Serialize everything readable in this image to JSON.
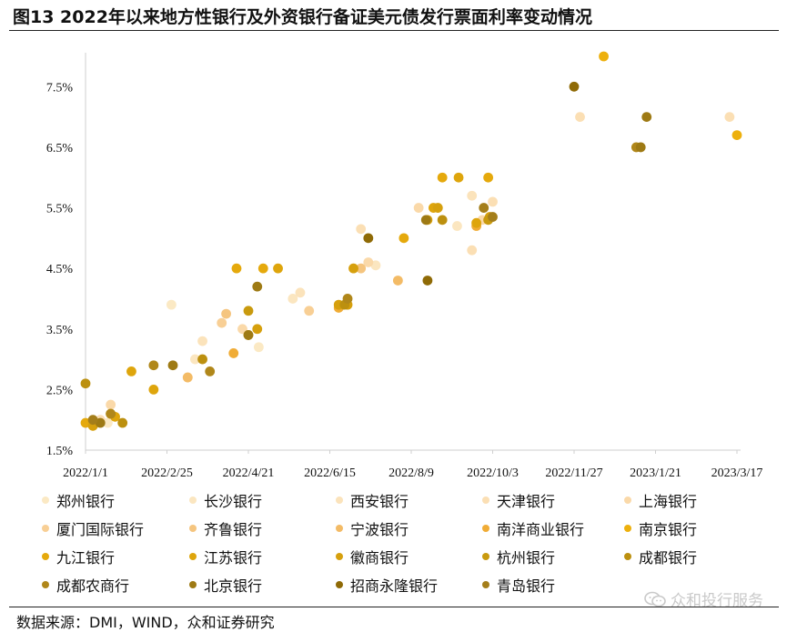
{
  "title": "图13 2022年以来地方性银行及外资银行备证美元债发行票面利率变动情况",
  "source": "数据来源：DMI，WIND，众和证券研究",
  "watermark": "众和投行服务",
  "chart_data": {
    "type": "scatter",
    "title": "",
    "xlabel": "",
    "ylabel": "",
    "x_tick_labels": [
      "2022/1/1",
      "2022/2/25",
      "2022/4/21",
      "2022/6/15",
      "2022/8/9",
      "2022/10/3",
      "2022/11/27",
      "2023/1/21",
      "2023/3/17"
    ],
    "x_range": [
      "2022/1/1",
      "2023/3/17"
    ],
    "y_tick_labels": [
      "1.5%",
      "2.5%",
      "3.5%",
      "4.5%",
      "5.5%",
      "6.5%",
      "7.5%"
    ],
    "y_ticks": [
      1.5,
      2.5,
      3.5,
      4.5,
      5.5,
      6.5,
      7.5
    ],
    "y_range": [
      1.5,
      8.0
    ],
    "grid": false,
    "legend_position": "bottom",
    "series": [
      {
        "name": "郑州银行",
        "color": "#fbe9c4",
        "points": [
          {
            "x": "2022/1/16",
            "y": 1.95
          },
          {
            "x": "2022/2/28",
            "y": 3.9
          },
          {
            "x": "2022/4/28",
            "y": 3.2
          }
        ]
      },
      {
        "name": "长沙银行",
        "color": "#fbe6c0",
        "points": [
          {
            "x": "2022/3/16",
            "y": 3.0
          },
          {
            "x": "2022/5/21",
            "y": 4.0
          },
          {
            "x": "2022/7/16",
            "y": 4.55
          },
          {
            "x": "2022/9/9",
            "y": 5.2
          }
        ]
      },
      {
        "name": "西安银行",
        "color": "#fbe3bb",
        "points": [
          {
            "x": "2022/3/21",
            "y": 3.3
          },
          {
            "x": "2022/5/26",
            "y": 4.1
          },
          {
            "x": "2022/9/19",
            "y": 5.7
          },
          {
            "x": "2022/10/2",
            "y": 5.35
          }
        ]
      },
      {
        "name": "天津银行",
        "color": "#fbdfb4",
        "points": [
          {
            "x": "2022/1/11",
            "y": 2.0
          },
          {
            "x": "2022/7/1",
            "y": 4.5
          },
          {
            "x": "2022/7/6",
            "y": 5.15
          },
          {
            "x": "2022/9/19",
            "y": 4.8
          },
          {
            "x": "2022/10/3",
            "y": 5.6
          },
          {
            "x": "2022/12/1",
            "y": 7.0
          },
          {
            "x": "2023/3/12",
            "y": 7.0
          }
        ]
      },
      {
        "name": "上海银行",
        "color": "#fad9a9",
        "points": [
          {
            "x": "2022/1/18",
            "y": 2.25
          },
          {
            "x": "2022/4/17",
            "y": 3.5
          },
          {
            "x": "2022/7/11",
            "y": 4.6
          },
          {
            "x": "2022/8/14",
            "y": 5.5
          },
          {
            "x": "2022/9/26",
            "y": 5.3
          }
        ]
      },
      {
        "name": "厦门国际银行",
        "color": "#f8cf95",
        "points": [
          {
            "x": "2022/3/11",
            "y": 2.7
          },
          {
            "x": "2022/4/3",
            "y": 3.6
          },
          {
            "x": "2022/6/1",
            "y": 3.8
          }
        ]
      },
      {
        "name": "齐鲁银行",
        "color": "#f5c57f",
        "points": [
          {
            "x": "2022/4/6",
            "y": 3.75
          },
          {
            "x": "2022/7/6",
            "y": 4.5
          }
        ]
      },
      {
        "name": "宁波银行",
        "color": "#f3bb66",
        "points": [
          {
            "x": "2022/3/11",
            "y": 2.7
          },
          {
            "x": "2022/7/31",
            "y": 4.3
          }
        ]
      },
      {
        "name": "南洋商业银行",
        "color": "#f0ac36",
        "points": [
          {
            "x": "2022/4/11",
            "y": 3.1
          },
          {
            "x": "2022/6/21",
            "y": 3.85
          },
          {
            "x": "2022/9/22",
            "y": 5.2
          }
        ]
      },
      {
        "name": "南京银行",
        "color": "#edb00d",
        "points": [
          {
            "x": "2022/12/17",
            "y": 8.0
          },
          {
            "x": "2023/3/17",
            "y": 6.7
          }
        ]
      },
      {
        "name": "九江银行",
        "color": "#e5a90c",
        "points": [
          {
            "x": "2022/1/1",
            "y": 1.95
          },
          {
            "x": "2022/4/13",
            "y": 4.5
          },
          {
            "x": "2022/5/1",
            "y": 4.5
          },
          {
            "x": "2022/8/4",
            "y": 5.0
          },
          {
            "x": "2022/8/30",
            "y": 6.0
          },
          {
            "x": "2022/9/30",
            "y": 6.0
          }
        ]
      },
      {
        "name": "江苏银行",
        "color": "#dea50c",
        "points": [
          {
            "x": "2022/1/21",
            "y": 2.05
          },
          {
            "x": "2022/2/1",
            "y": 2.8
          },
          {
            "x": "2022/2/16",
            "y": 2.5
          },
          {
            "x": "2022/4/21",
            "y": 3.4
          },
          {
            "x": "2022/5/11",
            "y": 4.5
          },
          {
            "x": "2022/8/24",
            "y": 5.5
          },
          {
            "x": "2022/9/10",
            "y": 6.0
          },
          {
            "x": "2022/9/22",
            "y": 5.25
          }
        ]
      },
      {
        "name": "徽商银行",
        "color": "#d6a00d",
        "points": [
          {
            "x": "2022/1/6",
            "y": 1.9
          },
          {
            "x": "2022/4/27",
            "y": 3.5
          },
          {
            "x": "2022/6/21",
            "y": 3.9
          },
          {
            "x": "2022/6/27",
            "y": 3.9
          },
          {
            "x": "2022/7/1",
            "y": 4.5
          },
          {
            "x": "2022/8/20",
            "y": 5.3
          },
          {
            "x": "2022/8/27",
            "y": 5.5
          },
          {
            "x": "2022/10/1",
            "y": 5.35
          }
        ]
      },
      {
        "name": "杭州银行",
        "color": "#c99a0e",
        "points": [
          {
            "x": "2022/1/18",
            "y": 2.1
          },
          {
            "x": "2022/4/21",
            "y": 3.8
          },
          {
            "x": "2022/9/30",
            "y": 5.3
          }
        ]
      },
      {
        "name": "成都银行",
        "color": "#bc900f",
        "points": [
          {
            "x": "2022/1/1",
            "y": 2.6
          },
          {
            "x": "2022/1/26",
            "y": 1.95
          },
          {
            "x": "2022/3/21",
            "y": 3.0
          },
          {
            "x": "2022/6/25",
            "y": 3.9
          },
          {
            "x": "2022/8/30",
            "y": 5.3
          }
        ]
      },
      {
        "name": "成都农商行",
        "color": "#b0871a",
        "points": [
          {
            "x": "2022/1/18",
            "y": 2.1
          },
          {
            "x": "2022/2/16",
            "y": 2.9
          },
          {
            "x": "2022/3/26",
            "y": 2.8
          },
          {
            "x": "2022/6/27",
            "y": 4.0
          },
          {
            "x": "2023/1/8",
            "y": 6.5
          }
        ]
      },
      {
        "name": "北京银行",
        "color": "#9e7a14",
        "points": [
          {
            "x": "2022/1/11",
            "y": 1.95
          },
          {
            "x": "2022/3/1",
            "y": 2.9
          },
          {
            "x": "2022/4/21",
            "y": 3.4
          },
          {
            "x": "2022/4/27",
            "y": 4.2
          },
          {
            "x": "2022/8/19",
            "y": 5.3
          },
          {
            "x": "2023/1/11",
            "y": 6.5
          },
          {
            "x": "2023/1/15",
            "y": 7.0
          }
        ]
      },
      {
        "name": "招商永隆银行",
        "color": "#8f6a06",
        "points": [
          {
            "x": "2022/7/11",
            "y": 5.0
          },
          {
            "x": "2022/8/20",
            "y": 4.3
          },
          {
            "x": "2022/11/27",
            "y": 7.5
          }
        ]
      },
      {
        "name": "青岛银行",
        "color": "#a47e1a",
        "points": [
          {
            "x": "2022/1/6",
            "y": 2.0
          },
          {
            "x": "2022/10/3",
            "y": 5.35
          },
          {
            "x": "2022/9/27",
            "y": 5.5
          }
        ]
      }
    ]
  }
}
